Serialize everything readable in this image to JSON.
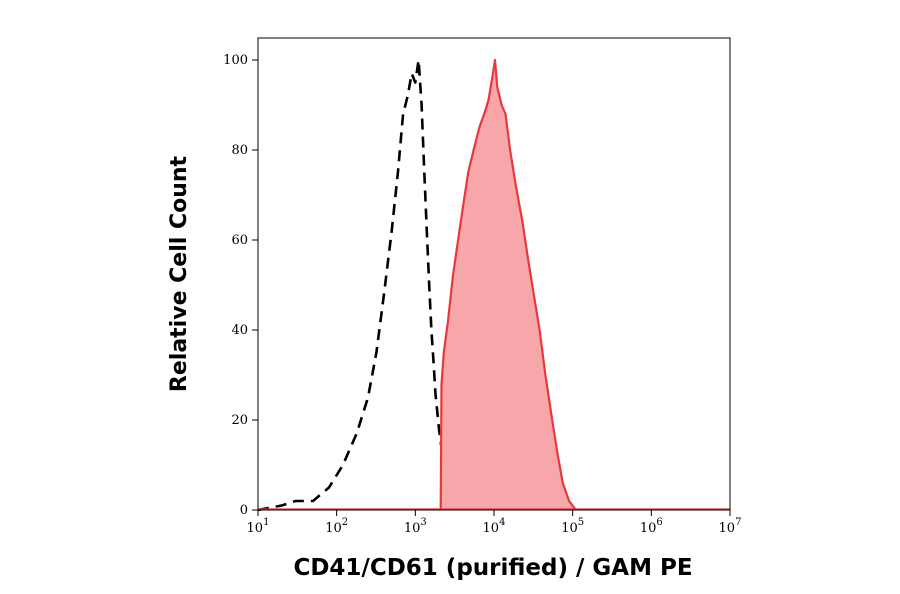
{
  "chart_data": {
    "type": "area",
    "title": "",
    "xlabel": "CD41/CD61 (purified) / GAM PE",
    "ylabel": "Relative Cell Count",
    "x_scale": "log",
    "xlim": [
      10,
      10000000
    ],
    "ylim": [
      0,
      100
    ],
    "x_ticks": [
      {
        "value": 10,
        "base": "10",
        "exp": "1"
      },
      {
        "value": 100,
        "base": "10",
        "exp": "2"
      },
      {
        "value": 1000,
        "base": "10",
        "exp": "3"
      },
      {
        "value": 10000,
        "base": "10",
        "exp": "4"
      },
      {
        "value": 100000,
        "base": "10",
        "exp": "5"
      },
      {
        "value": 1000000,
        "base": "10",
        "exp": "6"
      },
      {
        "value": 10000000,
        "base": "10",
        "exp": "7"
      }
    ],
    "y_ticks": [
      0,
      20,
      40,
      60,
      80,
      100
    ],
    "grid": false,
    "legend": "none",
    "series": [
      {
        "style": "dashed-black-line",
        "color": "#000000",
        "x": [
          10,
          20,
          30,
          50,
          80,
          120,
          180,
          250,
          320,
          400,
          500,
          600,
          700,
          800,
          900,
          1000,
          1100,
          1200,
          1300,
          1400,
          1500,
          1600,
          1700,
          1800,
          2000,
          2300,
          2600,
          3000,
          3500
        ],
        "y": [
          0,
          1,
          2,
          2,
          5,
          10,
          17,
          25,
          35,
          48,
          62,
          75,
          88,
          92,
          97,
          95,
          100,
          90,
          75,
          62,
          50,
          40,
          33,
          26,
          18,
          10,
          5,
          2,
          0
        ]
      },
      {
        "style": "red-filled-area",
        "color": "#e8383d",
        "fill": "#f7a6aa",
        "x": [
          2100,
          2150,
          2300,
          2600,
          3000,
          3500,
          4000,
          4700,
          5500,
          6500,
          7500,
          8500,
          9500,
          10300,
          11000,
          12500,
          14000,
          16000,
          19000,
          23000,
          27000,
          32000,
          38000,
          45000,
          55000,
          65000,
          75000,
          90000,
          110000
        ],
        "y": [
          0,
          28,
          35,
          42,
          52,
          60,
          67,
          75,
          80,
          85,
          88,
          91,
          96,
          100,
          94,
          90,
          88,
          80,
          72,
          64,
          56,
          48,
          40,
          30,
          20,
          12,
          6,
          2,
          0
        ]
      }
    ]
  }
}
